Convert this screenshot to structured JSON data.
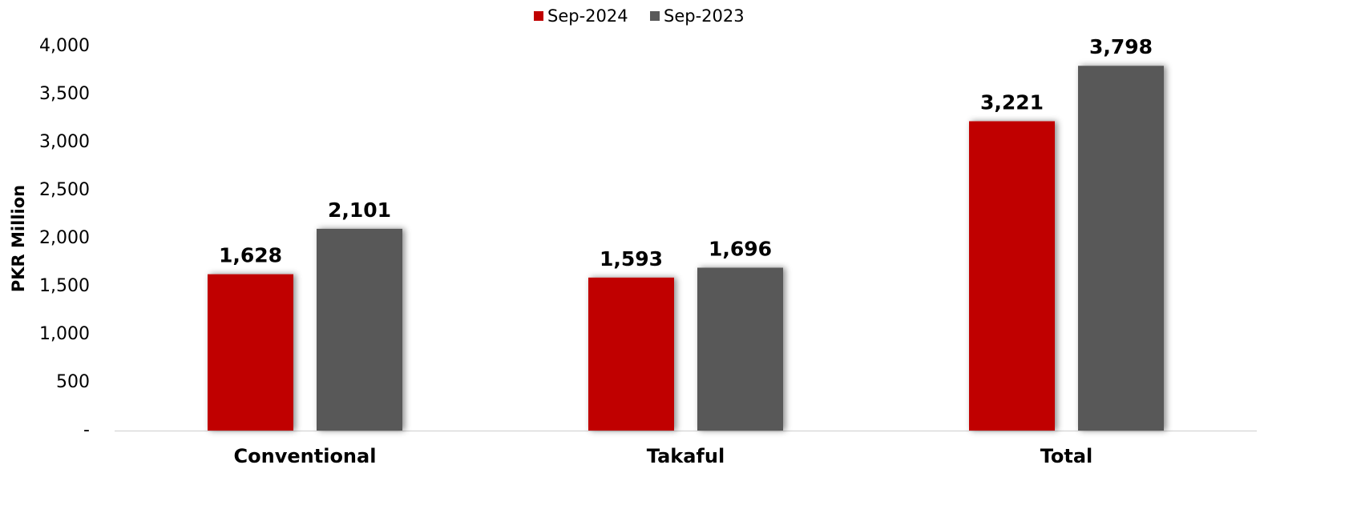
{
  "chart_data": {
    "type": "bar",
    "y_axis_label": "PKR Million",
    "categories": [
      "Conventional",
      "Takaful",
      "Total"
    ],
    "series": [
      {
        "name": "Sep-2024",
        "color": "#c00000",
        "values": [
          1628,
          1593,
          3221
        ],
        "value_labels": [
          "1,628",
          "1,593",
          "3,221"
        ]
      },
      {
        "name": "Sep-2023",
        "color": "#595959",
        "values": [
          2101,
          1696,
          3798
        ],
        "value_labels": [
          "2,101",
          "1,696",
          "3,798"
        ]
      }
    ],
    "ylim": [
      0,
      4000
    ],
    "yticks": [
      {
        "value": 0,
        "label": "-"
      },
      500,
      {
        "value": 1000,
        "label": "1,000"
      },
      {
        "value": 1500,
        "label": "1,500"
      },
      {
        "value": 2000,
        "label": "2,000"
      },
      {
        "value": 2500,
        "label": "2,500"
      },
      {
        "value": 3000,
        "label": "3,000"
      },
      {
        "value": 3500,
        "label": "3,500"
      },
      {
        "value": 4000,
        "label": "4,000"
      }
    ],
    "grid": false,
    "legend": "top"
  }
}
